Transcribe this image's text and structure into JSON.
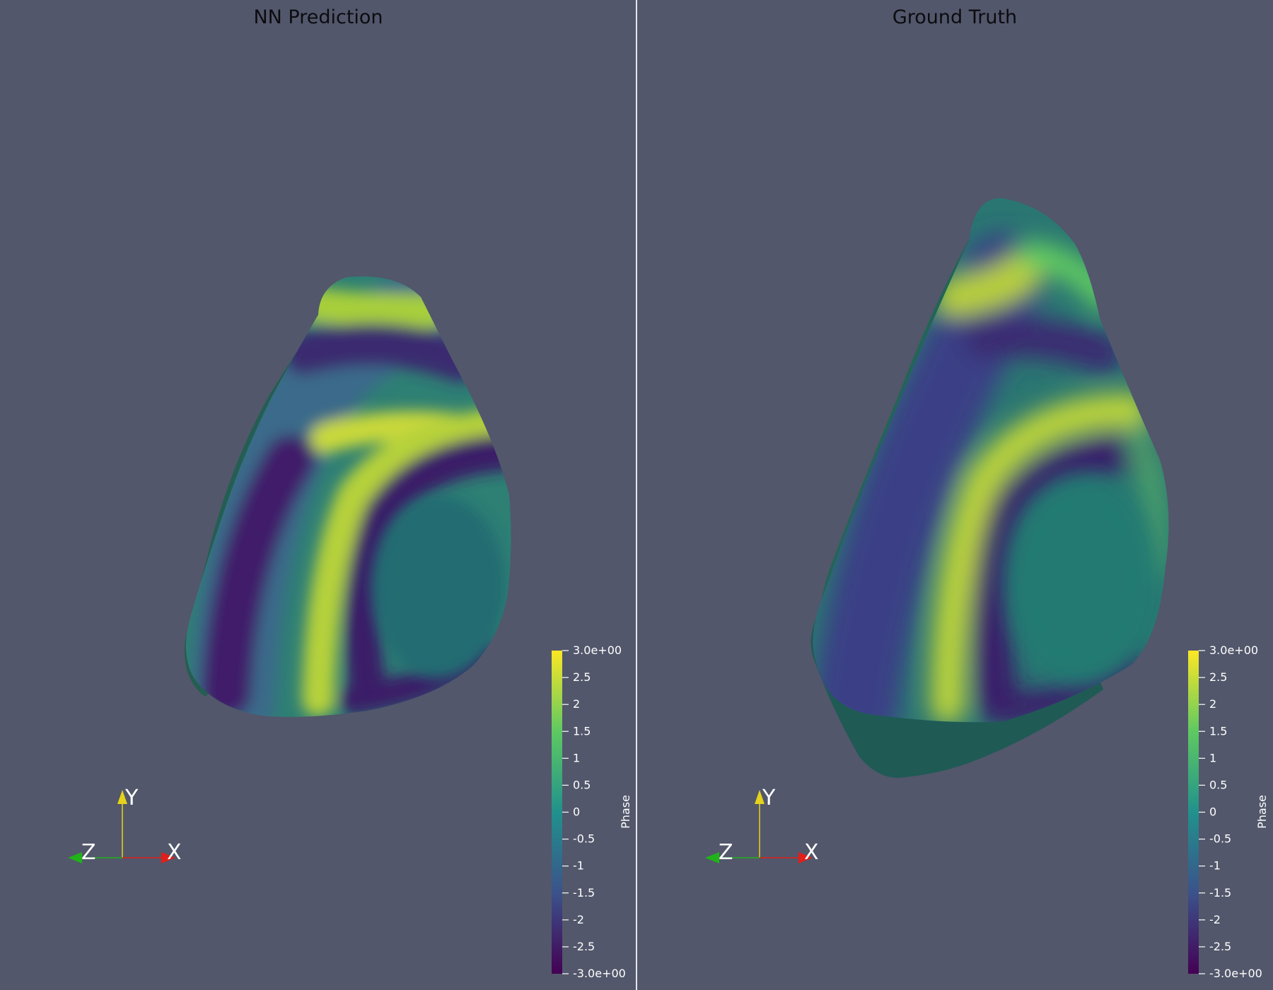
{
  "app": "ParaView render view",
  "colors": {
    "background": "#52576b",
    "divider": "#e6e6ea",
    "title_text": "#0c0c10",
    "axis_x": "#e0201a",
    "axis_y": "#e6d21a",
    "axis_z": "#21b21a"
  },
  "colormap": {
    "name": "viridis",
    "stops": [
      "#440154",
      "#3b528b",
      "#21918c",
      "#5ec962",
      "#fde725"
    ]
  },
  "panels": [
    {
      "title": "NN Prediction",
      "colorbar": {
        "title": "Phase",
        "range": [
          -3.0,
          3.0
        ],
        "ticks": [
          "3.0e+00",
          "2.5",
          "2",
          "1.5",
          "1",
          "0.5",
          "0",
          "-0.5",
          "-1",
          "-1.5",
          "-2",
          "-2.5",
          "-3.0e+00"
        ]
      },
      "axes": {
        "x_label": "X",
        "y_label": "Y",
        "z_label": "Z"
      }
    },
    {
      "title": "Ground Truth",
      "colorbar": {
        "title": "Phase",
        "range": [
          -3.0,
          3.0
        ],
        "ticks": [
          "3.0e+00",
          "2.5",
          "2",
          "1.5",
          "1",
          "0.5",
          "0",
          "-0.5",
          "-1",
          "-1.5",
          "-2",
          "-2.5",
          "-3.0e+00"
        ]
      },
      "axes": {
        "x_label": "X",
        "y_label": "Y",
        "z_label": "Z"
      }
    }
  ]
}
